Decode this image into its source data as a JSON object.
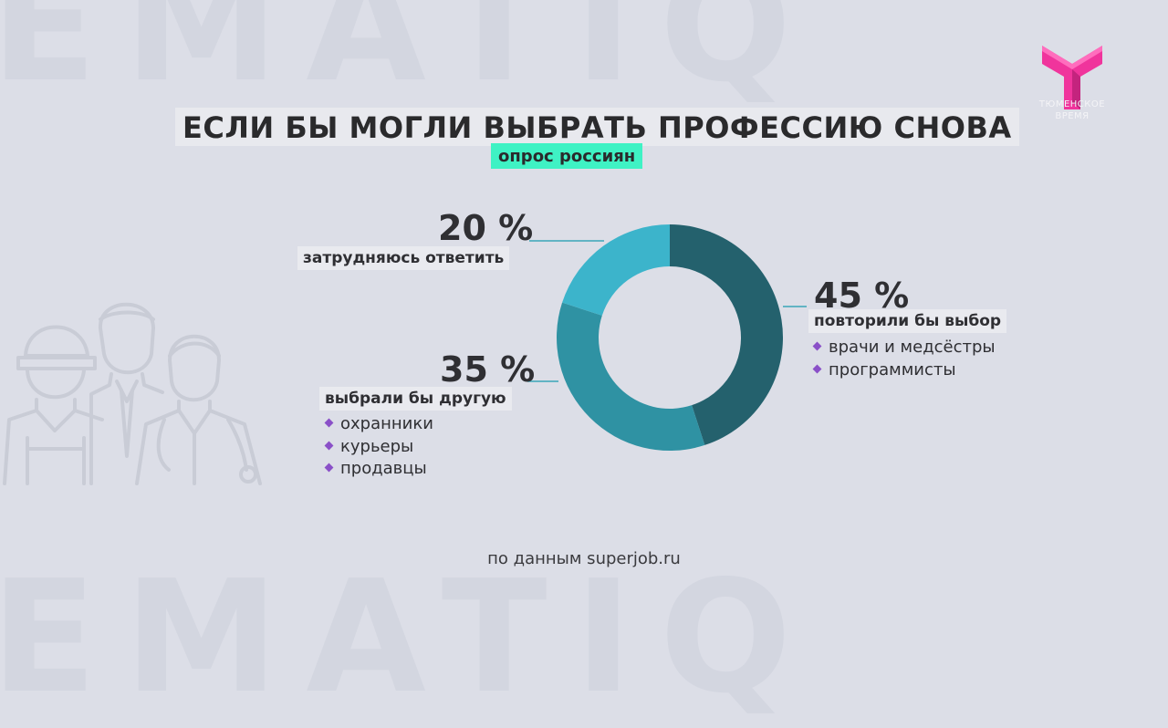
{
  "title": "ЕСЛИ БЫ МОГЛИ ВЫБРАТЬ ПРОФЕССИЮ СНОВА",
  "subtitle": "опрос россиян",
  "logo": {
    "caption_line1": "ТЮМЕНСКОЕ",
    "caption_line2": "ВРЕМЯ",
    "color": "#f0349c"
  },
  "source": "по данным superjob.ru",
  "decor": {
    "background_word": "EMATIQ"
  },
  "segments": {
    "repeat": {
      "value": "45 %",
      "label": "повторили бы выбор",
      "items": [
        "врачи и медсёстры",
        "программисты"
      ]
    },
    "other": {
      "value": "35 %",
      "label": "выбрали бы другую",
      "items": [
        "охранники",
        "курьеры",
        "продавцы"
      ]
    },
    "unsure": {
      "value": "20 %",
      "label": "затрудняюсь ответить",
      "items": []
    }
  },
  "chart_data": {
    "type": "pie",
    "subtype": "donut",
    "title": "ЕСЛИ БЫ МОГЛИ ВЫБРАТЬ ПРОФЕССИЮ СНОВА",
    "subtitle": "опрос россиян",
    "categories": [
      "повторили бы выбор",
      "выбрали бы другую",
      "затрудняюсь ответить"
    ],
    "values": [
      45,
      35,
      20
    ],
    "unit": "%",
    "colors": [
      "#24616d",
      "#2f92a3",
      "#3cb4cb"
    ],
    "start": "12 o'clock, clockwise"
  }
}
